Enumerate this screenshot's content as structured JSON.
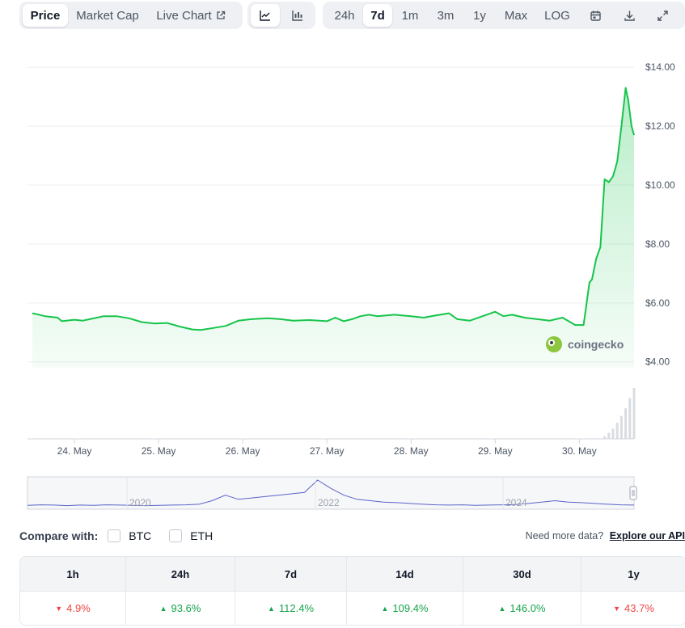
{
  "toolbar": {
    "tabs": [
      {
        "label": "Price",
        "active": true
      },
      {
        "label": "Market Cap",
        "active": false
      },
      {
        "label": "Live Chart",
        "active": false
      }
    ],
    "chart_types": [
      {
        "icon": "line-chart-icon",
        "active": true
      },
      {
        "icon": "candlestick-chart-icon",
        "active": false
      }
    ],
    "ranges": [
      {
        "label": "24h",
        "active": false
      },
      {
        "label": "7d",
        "active": true
      },
      {
        "label": "1m",
        "active": false
      },
      {
        "label": "3m",
        "active": false
      },
      {
        "label": "1y",
        "active": false
      },
      {
        "label": "Max",
        "active": false
      },
      {
        "label": "LOG",
        "active": false
      }
    ],
    "actions": [
      "calendar-icon",
      "download-icon",
      "fullscreen-icon"
    ]
  },
  "watermark": "coingecko",
  "colors": {
    "price_line": "#16c44a",
    "volume_bar": "#d9dce1",
    "navigator_line": "#5b63c9",
    "up": "#16a34a",
    "down": "#ef4444"
  },
  "chart_data": {
    "type": "area",
    "title": "",
    "xlabel": "",
    "ylabel": "",
    "ylim": [
      3.8,
      14.5
    ],
    "yticks": [
      4,
      6,
      8,
      10,
      12,
      14
    ],
    "ytick_labels": [
      "$4.00",
      "$6.00",
      "$8.00",
      "$10.00",
      "$12.00",
      "$14.00"
    ],
    "xlim": [
      0,
      7.15
    ],
    "xticks": [
      0.5,
      1.5,
      2.5,
      3.5,
      4.5,
      5.5,
      6.5
    ],
    "xtick_labels": [
      "24. May",
      "25. May",
      "26. May",
      "27. May",
      "28. May",
      "29. May",
      "30. May"
    ],
    "grid": true,
    "series": [
      {
        "x": [
          0,
          0.05,
          0.15,
          0.3,
          0.35,
          0.5,
          0.6,
          0.7,
          0.85,
          1.0,
          1.15,
          1.3,
          1.45,
          1.6,
          1.75,
          1.9,
          2.0,
          2.15,
          2.3,
          2.45,
          2.6,
          2.8,
          2.95,
          3.1,
          3.3,
          3.5,
          3.6,
          3.7,
          3.8,
          3.9,
          4.0,
          4.1,
          4.3,
          4.5,
          4.65,
          4.8,
          4.95,
          5.05,
          5.2,
          5.35,
          5.5,
          5.6,
          5.7,
          5.85,
          6.0,
          6.15,
          6.3,
          6.45,
          6.55,
          6.62,
          6.65,
          6.7,
          6.75,
          6.8,
          6.85,
          6.9,
          6.95,
          7.0,
          7.05,
          7.08,
          7.12,
          7.15
        ],
        "values": [
          5.65,
          5.62,
          5.55,
          5.5,
          5.38,
          5.43,
          5.4,
          5.46,
          5.55,
          5.55,
          5.48,
          5.35,
          5.3,
          5.32,
          5.2,
          5.1,
          5.08,
          5.15,
          5.22,
          5.4,
          5.45,
          5.48,
          5.45,
          5.4,
          5.42,
          5.38,
          5.5,
          5.38,
          5.45,
          5.55,
          5.6,
          5.55,
          5.6,
          5.55,
          5.5,
          5.58,
          5.65,
          5.45,
          5.4,
          5.55,
          5.7,
          5.55,
          5.6,
          5.5,
          5.45,
          5.4,
          5.5,
          5.25,
          5.25,
          6.7,
          6.8,
          7.5,
          7.9,
          10.2,
          10.1,
          10.3,
          10.8,
          12.0,
          13.3,
          12.9,
          12.0,
          11.7
        ]
      }
    ],
    "volume": {
      "x": [
        6.8,
        6.85,
        6.9,
        6.95,
        7.0,
        7.05,
        7.1,
        7.15
      ],
      "relative_values": [
        0.05,
        0.12,
        0.2,
        0.32,
        0.45,
        0.6,
        0.8,
        1.0
      ]
    },
    "navigator": {
      "tick_labels": [
        "2020",
        "2022",
        "2024"
      ],
      "relative_values": [
        0.08,
        0.1,
        0.09,
        0.07,
        0.09,
        0.08,
        0.1,
        0.09,
        0.08,
        0.07,
        0.08,
        0.09,
        0.1,
        0.12,
        0.25,
        0.45,
        0.3,
        0.35,
        0.4,
        0.45,
        0.5,
        0.55,
        1.0,
        0.7,
        0.45,
        0.3,
        0.25,
        0.2,
        0.18,
        0.15,
        0.12,
        0.1,
        0.09,
        0.1,
        0.08,
        0.09,
        0.1,
        0.11,
        0.15,
        0.2,
        0.25,
        0.2,
        0.18,
        0.15,
        0.12,
        0.1,
        0.09
      ]
    }
  },
  "compare": {
    "label": "Compare with:",
    "options": [
      "BTC",
      "ETH"
    ],
    "api_text": "Need more data?",
    "api_link": "Explore our API"
  },
  "performance": {
    "headers": [
      "1h",
      "24h",
      "7d",
      "14d",
      "30d",
      "1y"
    ],
    "values": [
      {
        "text": "4.9%",
        "dir": "down"
      },
      {
        "text": "93.6%",
        "dir": "up"
      },
      {
        "text": "112.4%",
        "dir": "up"
      },
      {
        "text": "109.4%",
        "dir": "up"
      },
      {
        "text": "146.0%",
        "dir": "up"
      },
      {
        "text": "43.7%",
        "dir": "down"
      }
    ]
  }
}
